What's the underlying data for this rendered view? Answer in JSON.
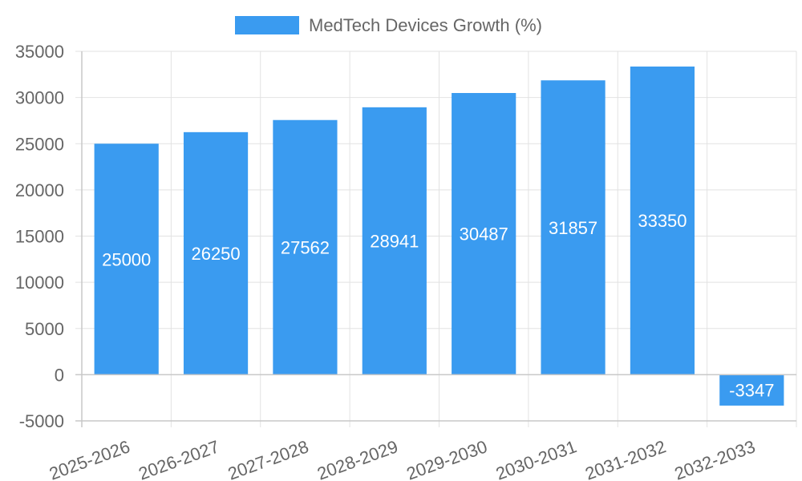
{
  "colors": {
    "bar": "#3a9bf0",
    "grid": "#e2e2e2",
    "axis": "#c8c8c8",
    "text": "#666666",
    "label": "#ffffff"
  },
  "chart_data": {
    "type": "bar",
    "title": "",
    "xlabel": "",
    "ylabel": "",
    "categories": [
      "2025-2026",
      "2026-2027",
      "2027-2028",
      "2028-2029",
      "2029-2030",
      "2030-2031",
      "2031-2032",
      "2032-2033"
    ],
    "series": [
      {
        "name": "MedTech Devices Growth (%)",
        "values": [
          25000,
          26250,
          27562,
          28941,
          30487,
          31857,
          33350,
          -3347
        ]
      }
    ],
    "ylim": [
      -5000,
      35000
    ],
    "yticks": [
      35000,
      30000,
      25000,
      20000,
      15000,
      10000,
      5000,
      0,
      -5000
    ],
    "grid": true,
    "legend": "top-center",
    "data_labels": true
  }
}
